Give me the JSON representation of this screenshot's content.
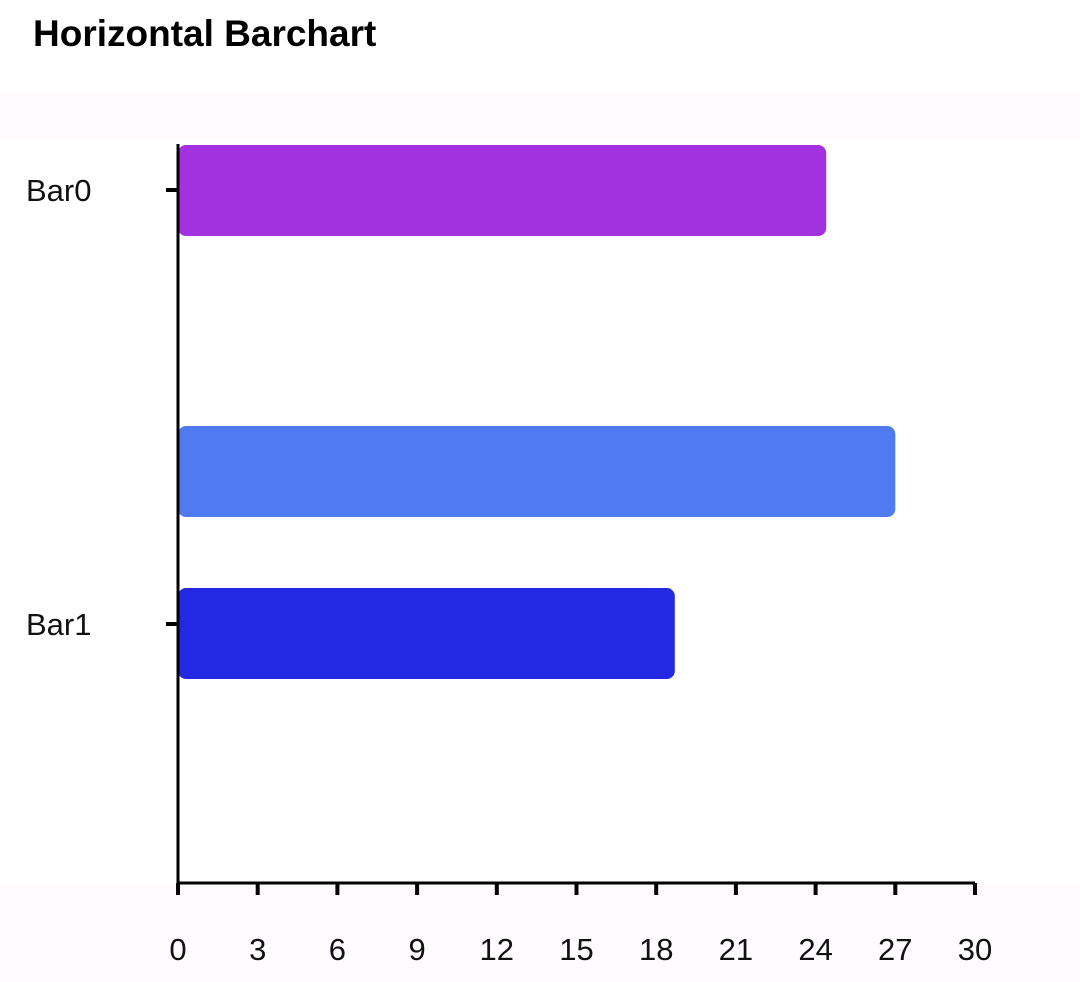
{
  "chart_data": {
    "type": "bar",
    "orientation": "horizontal",
    "title": "Horizontal Barchart",
    "categories": [
      "Bar0",
      "Bar1"
    ],
    "bars": [
      {
        "category": "Bar0",
        "value": 24.4,
        "color": "#A231E0"
      },
      {
        "category": "Bar1",
        "value": 27.0,
        "color": "#4F7AF0"
      },
      {
        "category": "Bar1",
        "value": 18.7,
        "color": "#2329E3"
      }
    ],
    "xlim": [
      0,
      30
    ],
    "xticks": [
      0,
      3,
      6,
      9,
      12,
      15,
      18,
      21,
      24,
      27,
      30
    ],
    "grid": false,
    "legend": "none",
    "colors": {
      "band": "#FFFBFE",
      "plot": "#FFFFFF",
      "axis": "#000000"
    }
  }
}
